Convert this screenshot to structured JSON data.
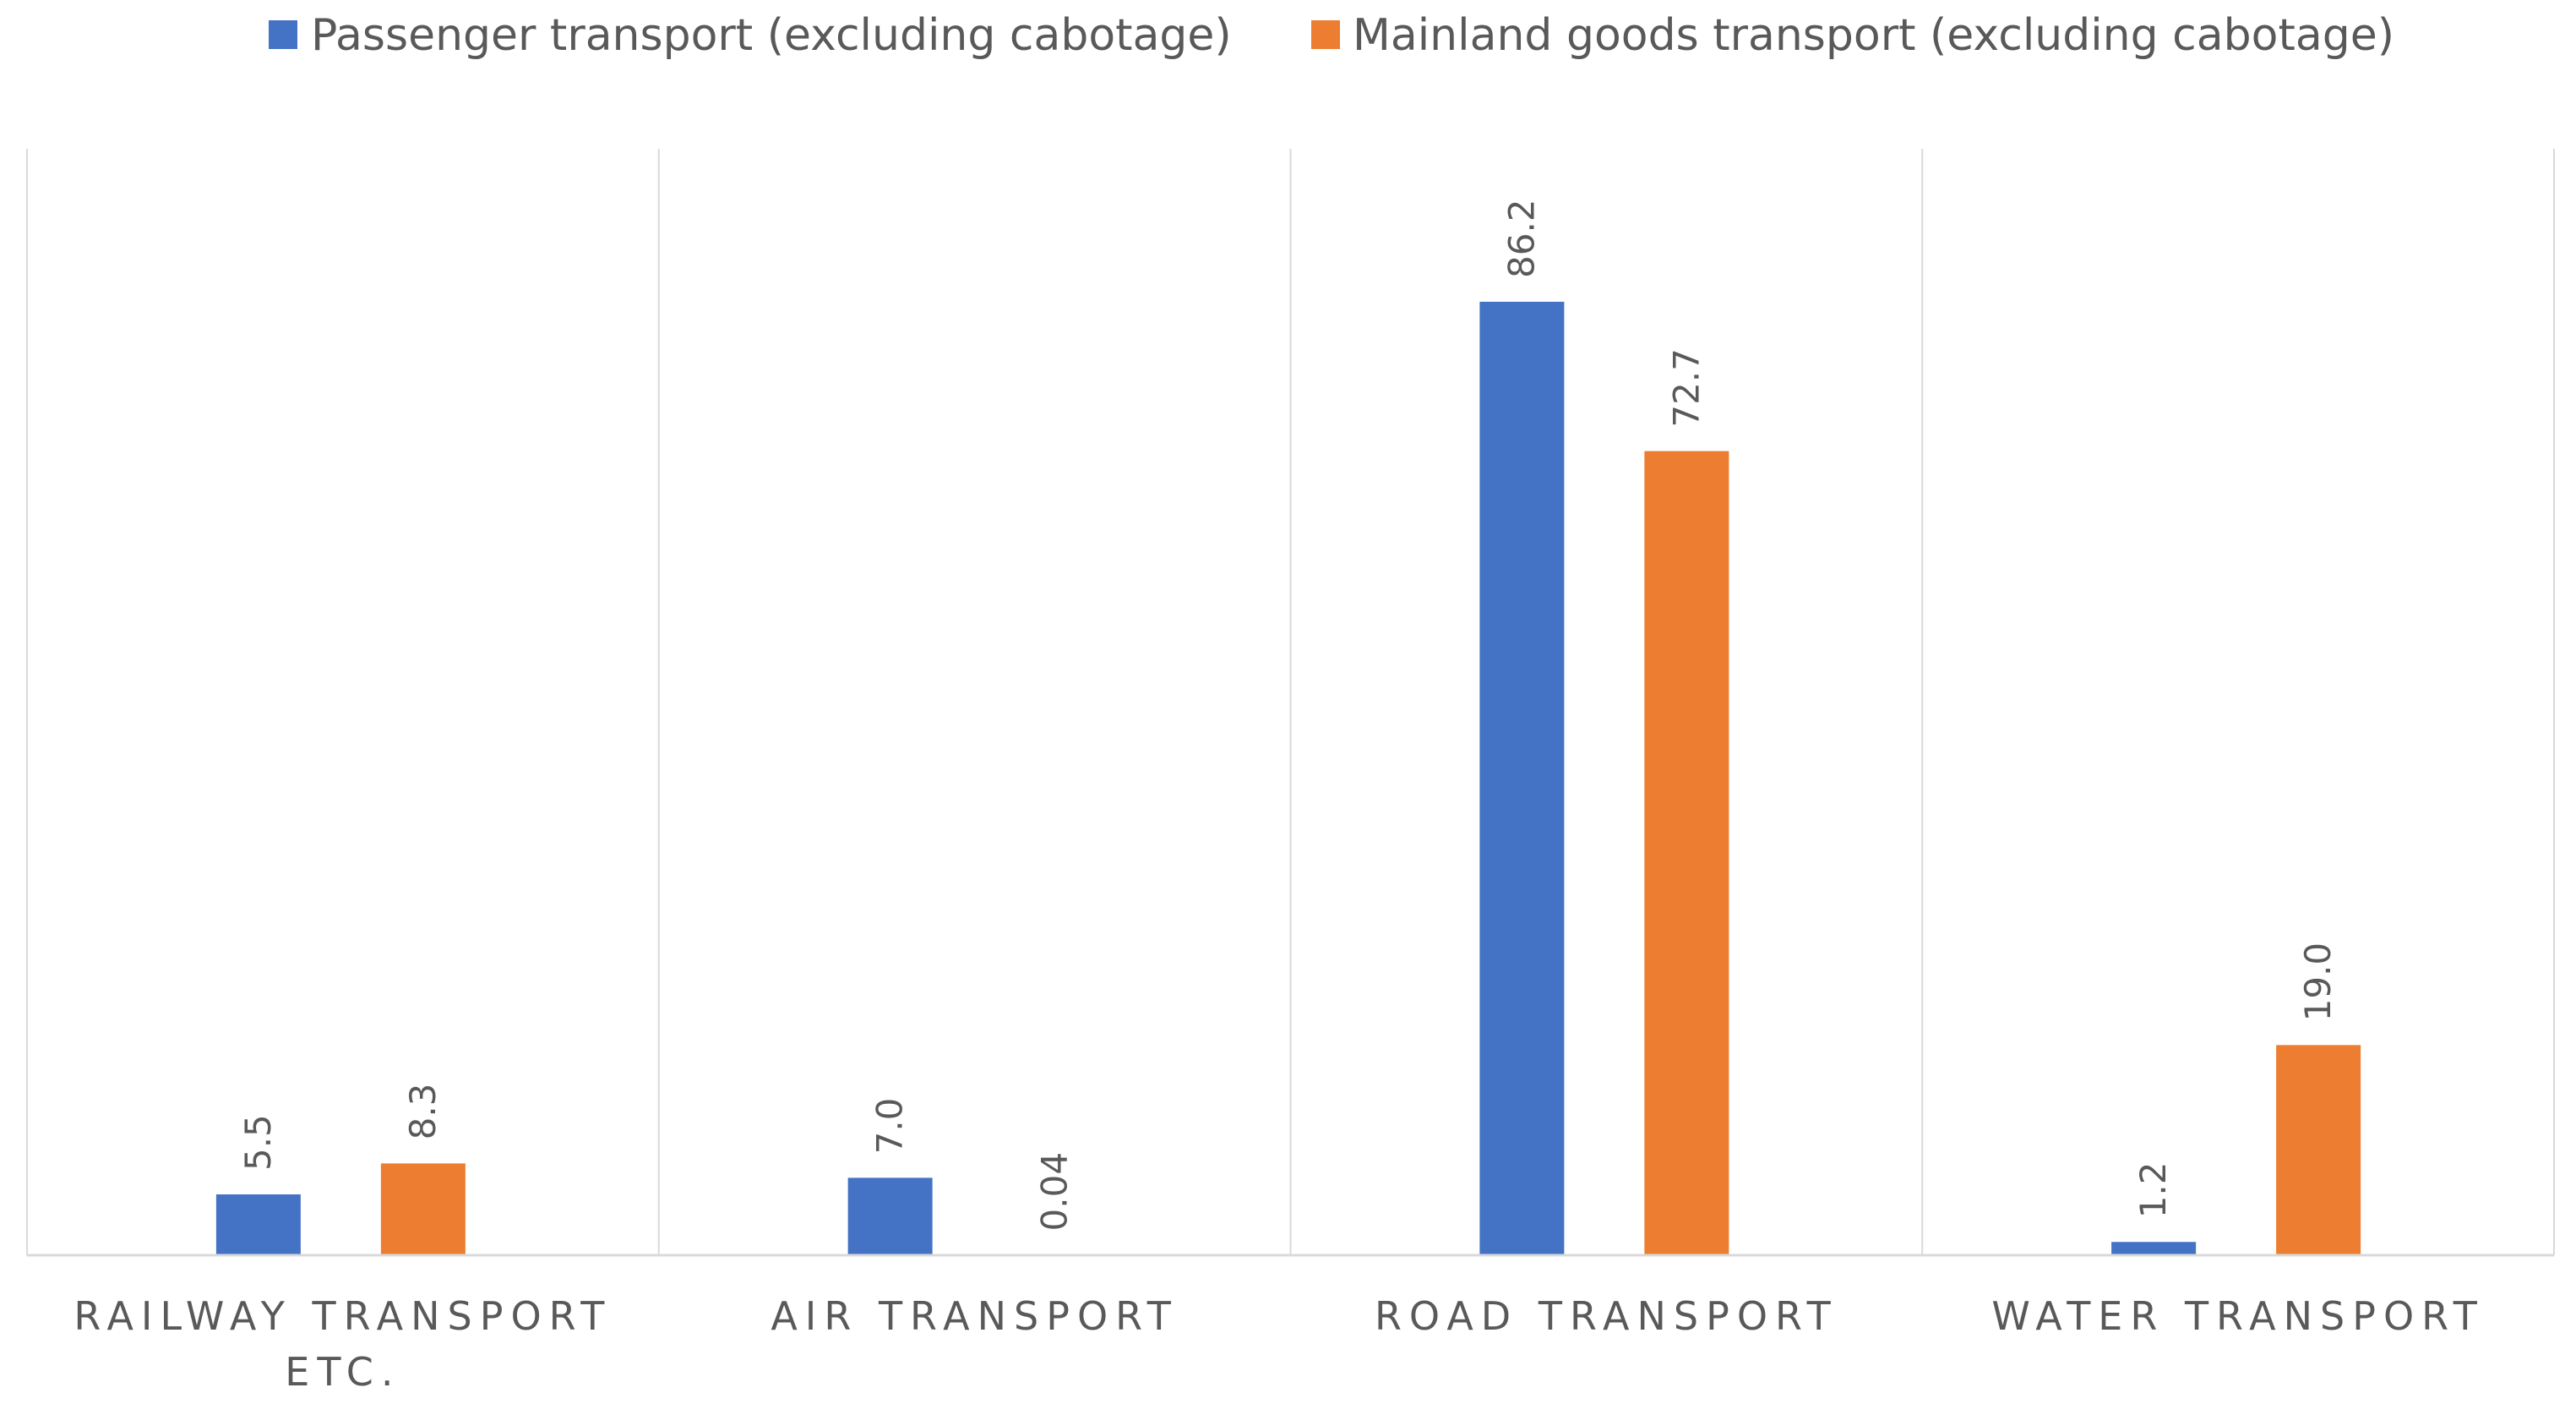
{
  "chart_data": {
    "type": "bar",
    "title": "",
    "xlabel": "",
    "ylabel": "",
    "ylim": [
      0,
      100
    ],
    "grid": false,
    "legend_position": "top",
    "categories": [
      [
        "RAILWAY TRANSPORT",
        "ETC."
      ],
      [
        "AIR TRANSPORT"
      ],
      [
        "ROAD TRANSPORT"
      ],
      [
        "WATER TRANSPORT"
      ]
    ],
    "series": [
      {
        "name": "Passenger transport (excluding cabotage)",
        "color": "#4472C4",
        "values": [
          5.5,
          7.0,
          86.2,
          1.2
        ],
        "labels": [
          "5.5",
          "7.0",
          "86.2",
          "1.2"
        ]
      },
      {
        "name": "Mainland goods transport (excluding cabotage)",
        "color": "#ED7D31",
        "values": [
          8.3,
          0.04,
          72.7,
          19.0
        ],
        "labels": [
          "8.3",
          "0.04",
          "72.7",
          "19.0"
        ]
      }
    ]
  }
}
